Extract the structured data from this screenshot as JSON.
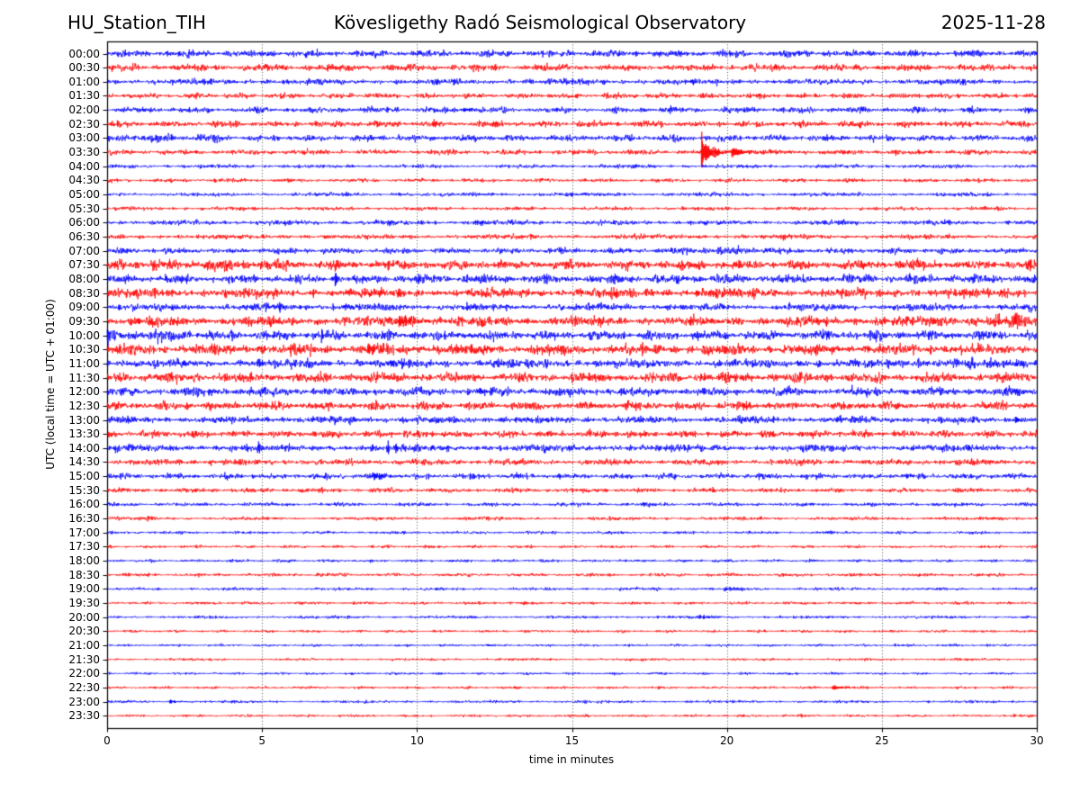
{
  "header": {
    "station": "HU_Station_TIH",
    "title": "Kövesligethy Radó Seismological Observatory",
    "date": "2025-11-28"
  },
  "chart_data": {
    "type": "line",
    "subtype": "helicorder-seismogram",
    "xlabel": "time in minutes",
    "ylabel": "UTC (local time = UTC + 01:00)",
    "x_range": [
      0,
      30
    ],
    "x_ticks": [
      0,
      5,
      10,
      15,
      20,
      25,
      30
    ],
    "grid_minutes": [
      5,
      10,
      15,
      20,
      25
    ],
    "grid_on": true,
    "trace_colors": {
      "even": "#0000ff",
      "odd": "#ff0000"
    },
    "grid_color": "#3c3c3c",
    "frame_color": "#000000",
    "minutes_per_row": 30,
    "rows": [
      {
        "label": "00:00",
        "amp": 2.6,
        "events": [],
        "segments": []
      },
      {
        "label": "00:30",
        "amp": 2.6,
        "events": [],
        "segments": []
      },
      {
        "label": "01:00",
        "amp": 2.2,
        "events": [],
        "segments": []
      },
      {
        "label": "01:30",
        "amp": 2.0,
        "events": [],
        "segments": []
      },
      {
        "label": "02:00",
        "amp": 2.2,
        "events": [
          {
            "t": 11.5,
            "amp": 2.5,
            "tau": 0.2
          }
        ],
        "segments": []
      },
      {
        "label": "02:30",
        "amp": 2.4,
        "events": [],
        "segments": []
      },
      {
        "label": "03:00",
        "amp": 2.4,
        "events": [],
        "segments": [
          [
            0,
            4,
            1.25
          ]
        ]
      },
      {
        "label": "03:30",
        "amp": 1.9,
        "events": [
          {
            "t": 19.17,
            "amp": 36,
            "tau": 0.05
          },
          {
            "t": 19.28,
            "amp": 9,
            "tau": 0.35
          },
          {
            "t": 20.15,
            "amp": 4.5,
            "tau": 0.35
          }
        ],
        "segments": []
      },
      {
        "label": "04:00",
        "amp": 1.4,
        "events": [],
        "segments": []
      },
      {
        "label": "04:30",
        "amp": 1.4,
        "events": [],
        "segments": []
      },
      {
        "label": "05:00",
        "amp": 1.5,
        "events": [
          {
            "t": 9.4,
            "amp": 2.5,
            "tau": 0.12
          }
        ],
        "segments": []
      },
      {
        "label": "05:30",
        "amp": 1.4,
        "events": [],
        "segments": []
      },
      {
        "label": "06:00",
        "amp": 1.8,
        "events": [
          {
            "t": 11.8,
            "amp": 2.5,
            "tau": 0.2
          }
        ],
        "segments": []
      },
      {
        "label": "06:30",
        "amp": 1.8,
        "events": [
          {
            "t": 21.8,
            "amp": 4.5,
            "tau": 0.08
          }
        ],
        "segments": []
      },
      {
        "label": "07:00",
        "amp": 2.2,
        "events": [],
        "segments": [
          [
            18.5,
            21.5,
            1.5
          ]
        ]
      },
      {
        "label": "07:30",
        "amp": 3.6,
        "events": [],
        "segments": [
          [
            0,
            6,
            1.25
          ]
        ]
      },
      {
        "label": "08:00",
        "amp": 3.3,
        "events": [
          {
            "t": 7.35,
            "amp": 13,
            "tau": 0.07
          }
        ],
        "segments": []
      },
      {
        "label": "08:30",
        "amp": 3.6,
        "events": [
          {
            "t": 6.63,
            "amp": 8,
            "tau": 0.06
          },
          {
            "t": 19.0,
            "amp": 4.5,
            "tau": 0.4
          }
        ],
        "segments": []
      },
      {
        "label": "09:00",
        "amp": 2.7,
        "events": [
          {
            "t": 6.2,
            "amp": 4,
            "tau": 0.05
          }
        ],
        "segments": []
      },
      {
        "label": "09:30",
        "amp": 3.7,
        "events": [
          {
            "t": 9.4,
            "amp": 6.5,
            "tau": 0.5
          }
        ],
        "segments": [
          [
            26.5,
            30,
            1.45
          ]
        ]
      },
      {
        "label": "10:00",
        "amp": 3.5,
        "events": [
          {
            "t": 6.9,
            "amp": 11,
            "tau": 0.07
          }
        ],
        "segments": [
          [
            0,
            3,
            1.3
          ]
        ]
      },
      {
        "label": "10:30",
        "amp": 4.0,
        "events": [
          {
            "t": 8.4,
            "amp": 5.5,
            "tau": 0.5
          }
        ],
        "segments": []
      },
      {
        "label": "11:00",
        "amp": 3.3,
        "events": [
          {
            "t": 9.5,
            "amp": 6,
            "tau": 0.08
          }
        ],
        "segments": [
          [
            26,
            28,
            1.4
          ]
        ]
      },
      {
        "label": "11:30",
        "amp": 3.7,
        "events": [],
        "segments": []
      },
      {
        "label": "12:00",
        "amp": 3.3,
        "events": [],
        "segments": []
      },
      {
        "label": "12:30",
        "amp": 3.1,
        "events": [],
        "segments": []
      },
      {
        "label": "13:00",
        "amp": 2.7,
        "events": [
          {
            "t": 29.3,
            "amp": 4,
            "tau": 0.15
          }
        ],
        "segments": []
      },
      {
        "label": "13:30",
        "amp": 2.7,
        "events": [],
        "segments": []
      },
      {
        "label": "14:00",
        "amp": 2.7,
        "events": [
          {
            "t": 4.85,
            "amp": 9,
            "tau": 0.07
          },
          {
            "t": 9.05,
            "amp": 8,
            "tau": 0.06
          },
          {
            "t": 9.3,
            "amp": 10,
            "tau": 0.06
          }
        ],
        "segments": []
      },
      {
        "label": "14:30",
        "amp": 2.3,
        "events": [
          {
            "t": 3.3,
            "amp": 4,
            "tau": 0.06
          }
        ],
        "segments": []
      },
      {
        "label": "15:00",
        "amp": 2.1,
        "events": [
          {
            "t": 8.5,
            "amp": 4,
            "tau": 0.4
          }
        ],
        "segments": []
      },
      {
        "label": "15:30",
        "amp": 1.7,
        "events": [
          {
            "t": 0.35,
            "amp": 3,
            "tau": 0.08
          }
        ],
        "segments": []
      },
      {
        "label": "16:00",
        "amp": 1.4,
        "events": [],
        "segments": []
      },
      {
        "label": "16:30",
        "amp": 1.3,
        "events": [
          {
            "t": 1.3,
            "amp": 3,
            "tau": 0.06
          }
        ],
        "segments": []
      },
      {
        "label": "17:00",
        "amp": 1.1,
        "events": [],
        "segments": []
      },
      {
        "label": "17:30",
        "amp": 1.1,
        "events": [],
        "segments": []
      },
      {
        "label": "18:00",
        "amp": 1.1,
        "events": [],
        "segments": []
      },
      {
        "label": "18:30",
        "amp": 1.3,
        "events": [],
        "segments": []
      },
      {
        "label": "19:00",
        "amp": 1.1,
        "events": [
          {
            "t": 19.9,
            "amp": 2,
            "tau": 0.5
          }
        ],
        "segments": []
      },
      {
        "label": "19:30",
        "amp": 1.1,
        "events": [],
        "segments": []
      },
      {
        "label": "20:00",
        "amp": 1.1,
        "events": [
          {
            "t": 19.1,
            "amp": 2,
            "tau": 0.4
          }
        ],
        "segments": []
      },
      {
        "label": "20:30",
        "amp": 1.0,
        "events": [],
        "segments": []
      },
      {
        "label": "21:00",
        "amp": 0.95,
        "events": [],
        "segments": []
      },
      {
        "label": "21:30",
        "amp": 0.95,
        "events": [],
        "segments": []
      },
      {
        "label": "22:00",
        "amp": 0.95,
        "events": [],
        "segments": []
      },
      {
        "label": "22:30",
        "amp": 0.95,
        "events": [
          {
            "t": 23.4,
            "amp": 2.8,
            "tau": 0.3
          }
        ],
        "segments": []
      },
      {
        "label": "23:00",
        "amp": 1.05,
        "events": [
          {
            "t": 2.0,
            "amp": 1.8,
            "tau": 0.3
          }
        ],
        "segments": []
      },
      {
        "label": "23:30",
        "amp": 0.95,
        "events": [],
        "segments": []
      }
    ]
  }
}
